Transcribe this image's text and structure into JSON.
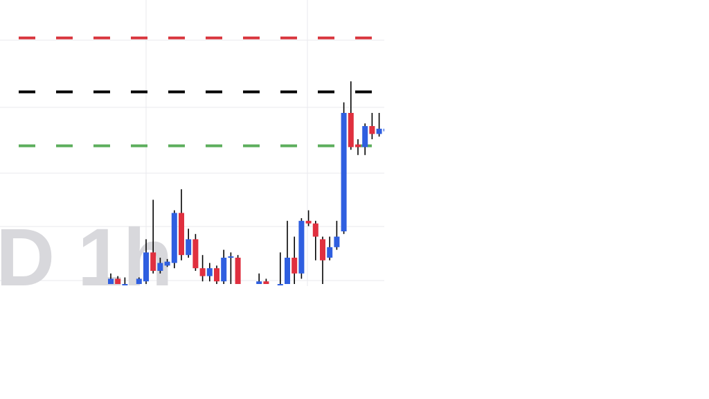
{
  "colors": {
    "background": "#ffffff",
    "grid": "#e9e9ee",
    "up_candle": "#2f5fe0",
    "down_candle": "#e0303f",
    "wick": "#000000",
    "resistance_line": "#d9363e",
    "pivot_line": "#000000",
    "support_line": "#5cae5c",
    "watermark": "#d8d8dc"
  },
  "watermark": {
    "text": "D 1h"
  },
  "chart_data": {
    "type": "candlestick",
    "title": "",
    "xlabel": "",
    "ylabel": "",
    "grid": true,
    "ylim": [
      0,
      100
    ],
    "xlim": [
      0,
      54
    ],
    "horizontal_lines": [
      {
        "role": "resistance",
        "value": 93.5,
        "style": "dashed",
        "color": "#d9363e"
      },
      {
        "role": "pivot",
        "value": 73.0,
        "style": "dashed",
        "color": "#000000"
      },
      {
        "role": "support",
        "value": 52.5,
        "style": "dashed",
        "color": "#5cae5c"
      }
    ],
    "candles": [
      {
        "x": 15,
        "open": 0.0,
        "close": 2.0,
        "high": 4.0,
        "low": 0.0
      },
      {
        "x": 16,
        "open": 2.0,
        "close": 0.0,
        "high": 3.0,
        "low": 0.0
      },
      {
        "x": 17,
        "open": 0.0,
        "close": 0.0,
        "high": 2.5,
        "low": 0.0
      },
      {
        "x": 19,
        "open": 0.0,
        "close": 2.0,
        "high": 2.5,
        "low": 0.0
      },
      {
        "x": 20,
        "open": 1.0,
        "close": 12.0,
        "high": 17.0,
        "low": 0.0
      },
      {
        "x": 21,
        "open": 12.0,
        "close": 5.0,
        "high": 32.0,
        "low": 4.0
      },
      {
        "x": 22,
        "open": 5.0,
        "close": 8.0,
        "high": 10.0,
        "low": 4.0
      },
      {
        "x": 23,
        "open": 7.0,
        "close": 8.5,
        "high": 9.5,
        "low": 6.5
      },
      {
        "x": 24,
        "open": 8.0,
        "close": 27.0,
        "high": 28.0,
        "low": 6.0
      },
      {
        "x": 25,
        "open": 27.0,
        "close": 11.0,
        "high": 36.0,
        "low": 9.0
      },
      {
        "x": 26,
        "open": 11.0,
        "close": 17.0,
        "high": 21.0,
        "low": 10.0
      },
      {
        "x": 27,
        "open": 17.0,
        "close": 6.0,
        "high": 19.0,
        "low": 5.0
      },
      {
        "x": 28,
        "open": 6.0,
        "close": 3.0,
        "high": 11.0,
        "low": 1.0
      },
      {
        "x": 29,
        "open": 3.0,
        "close": 6.0,
        "high": 8.0,
        "low": 1.0
      },
      {
        "x": 30,
        "open": 6.0,
        "close": 1.0,
        "high": 7.0,
        "low": 0.0
      },
      {
        "x": 31,
        "open": 1.0,
        "close": 10.0,
        "high": 13.0,
        "low": 0.0
      },
      {
        "x": 32,
        "open": 10.0,
        "close": 10.5,
        "high": 12.0,
        "low": 0.0
      },
      {
        "x": 33,
        "open": 10.0,
        "close": 0.0,
        "high": 11.0,
        "low": 0.0
      },
      {
        "x": 36,
        "open": 0.0,
        "close": 1.0,
        "high": 4.0,
        "low": 0.0
      },
      {
        "x": 37,
        "open": 1.0,
        "close": 0.0,
        "high": 2.0,
        "low": 0.0
      },
      {
        "x": 39,
        "open": 0.0,
        "close": 0.0,
        "high": 12.0,
        "low": 0.0
      },
      {
        "x": 40,
        "open": 0.0,
        "close": 10.0,
        "high": 24.0,
        "low": 0.0
      },
      {
        "x": 41,
        "open": 10.0,
        "close": 4.0,
        "high": 18.0,
        "low": 0.0
      },
      {
        "x": 42,
        "open": 4.0,
        "close": 24.0,
        "high": 25.0,
        "low": 2.0
      },
      {
        "x": 43,
        "open": 24.0,
        "close": 23.0,
        "high": 28.0,
        "low": 22.0
      },
      {
        "x": 44,
        "open": 23.0,
        "close": 18.0,
        "high": 24.0,
        "low": 9.0
      },
      {
        "x": 45,
        "open": 17.0,
        "close": 9.0,
        "high": 18.0,
        "low": 0.0
      },
      {
        "x": 46,
        "open": 10.0,
        "close": 14.0,
        "high": 18.0,
        "low": 9.0
      },
      {
        "x": 47,
        "open": 14.0,
        "close": 18.0,
        "high": 24.0,
        "low": 13.0
      },
      {
        "x": 48,
        "open": 20.0,
        "close": 65.0,
        "high": 69.0,
        "low": 19.0
      },
      {
        "x": 49,
        "open": 65.0,
        "close": 52.0,
        "high": 77.0,
        "low": 51.0
      },
      {
        "x": 50,
        "open": 53.0,
        "close": 52.0,
        "high": 55.0,
        "low": 49.0
      },
      {
        "x": 51,
        "open": 52.0,
        "close": 60.0,
        "high": 61.0,
        "low": 49.0
      },
      {
        "x": 52,
        "open": 60.0,
        "close": 57.0,
        "high": 65.0,
        "low": 55.0
      },
      {
        "x": 53,
        "open": 57.0,
        "close": 59.0,
        "high": 65.0,
        "low": 56.0
      },
      {
        "x": 54,
        "open": 58.0,
        "close": 59.0,
        "high": 66.0,
        "low": 57.0
      }
    ]
  }
}
